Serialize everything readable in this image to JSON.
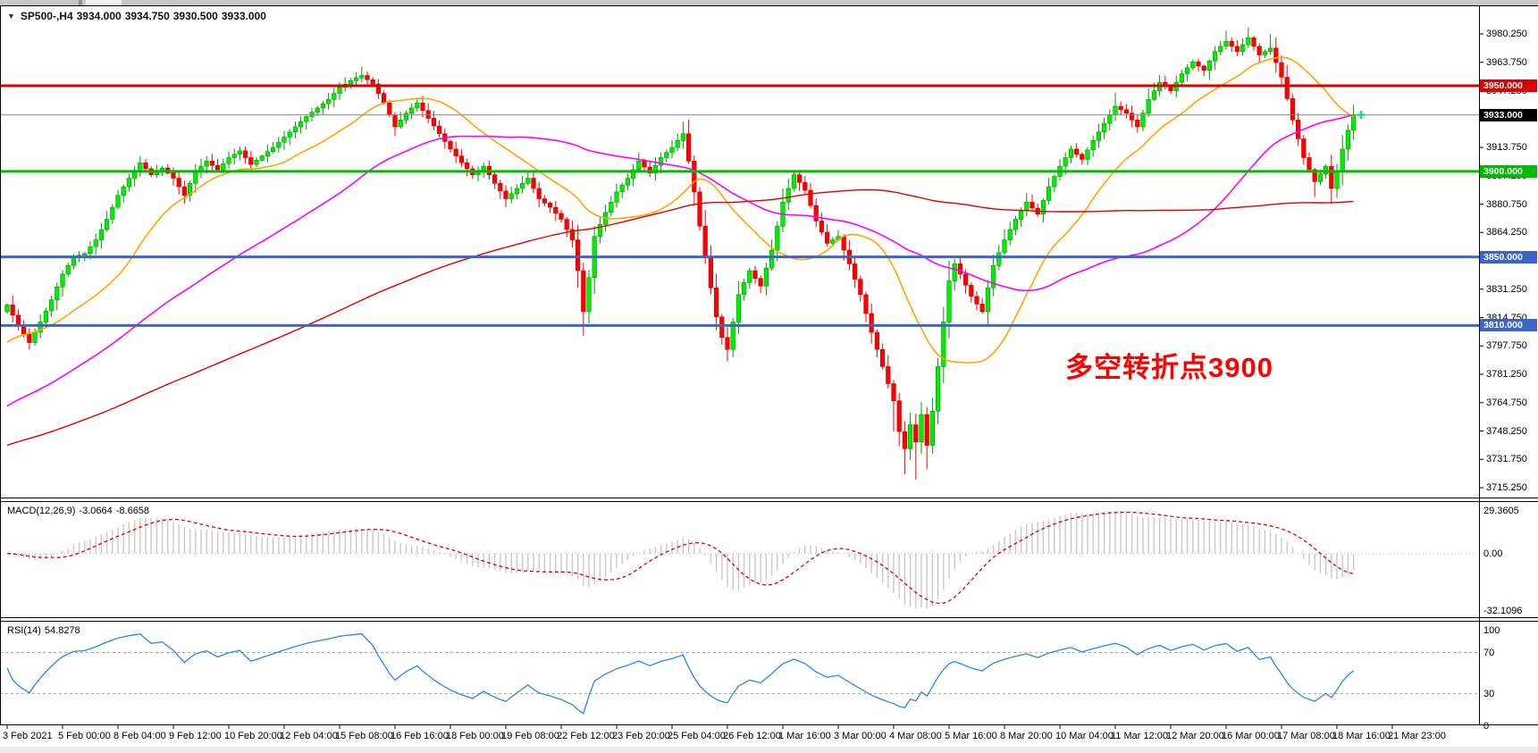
{
  "title": {
    "symbol": "SP500-,H4",
    "open": "3934.000",
    "high": "3934.750",
    "low": "3930.500",
    "close": "3933.000"
  },
  "annotation": {
    "text": "多空转折点3900",
    "color": "#FF0000"
  },
  "price_axis": {
    "labels": [
      "3980.250",
      "3963.750",
      "3947.250",
      "3930.250",
      "3913.750",
      "3897.250",
      "3880.750",
      "3864.250",
      "3847.750",
      "3831.250",
      "3814.750",
      "3797.750",
      "3781.250",
      "3764.750",
      "3748.250",
      "3731.750",
      "3715.250"
    ]
  },
  "time_axis": {
    "labels": [
      "3 Feb 2021",
      "5 Feb 00:00",
      "8 Feb 04:00",
      "9 Feb 12:00",
      "10 Feb 20:00",
      "12 Feb 04:00",
      "15 Feb 08:00",
      "16 Feb 16:00",
      "18 Feb 00:00",
      "19 Feb 08:00",
      "22 Feb 12:00",
      "23 Feb 20:00",
      "25 Feb 04:00",
      "26 Feb 12:00",
      "1 Mar 16:00",
      "3 Mar 00:00",
      "4 Mar 08:00",
      "5 Mar 16:00",
      "8 Mar 20:00",
      "10 Mar 04:00",
      "11 Mar 12:00",
      "12 Mar 20:00",
      "16 Mar 00:00",
      "17 Mar 08:00",
      "18 Mar 16:00",
      "21 Mar 23:00"
    ]
  },
  "indicators": {
    "macd": {
      "label": "MACD(12,26,9)",
      "value": "-3.0664",
      "signal": "-8.6658",
      "axis_labels": [
        "29.3605",
        "0.00",
        "-32.1096"
      ]
    },
    "rsi": {
      "label": "RSI(14)",
      "value": "54.8278",
      "axis_labels": [
        "100",
        "70",
        "30",
        "0"
      ]
    }
  },
  "chart_data": [
    {
      "type": "candlestick",
      "symbol": "SP500-",
      "timeframe": "H4",
      "last_ohlc": {
        "open": 3934.0,
        "high": 3934.75,
        "low": 3930.5,
        "close": 3933.0
      },
      "y_axis_range": [
        3715.25,
        3980.25
      ],
      "bars": 244,
      "bars_per_time_label": 10,
      "close_waypoints": [
        [
          0,
          3822
        ],
        [
          2,
          3810
        ],
        [
          4,
          3800
        ],
        [
          6,
          3812
        ],
        [
          8,
          3825
        ],
        [
          10,
          3840
        ],
        [
          12,
          3850
        ],
        [
          14,
          3852
        ],
        [
          16,
          3860
        ],
        [
          18,
          3872
        ],
        [
          20,
          3886
        ],
        [
          22,
          3896
        ],
        [
          24,
          3905
        ],
        [
          26,
          3898
        ],
        [
          28,
          3902
        ],
        [
          30,
          3896
        ],
        [
          32,
          3886
        ],
        [
          34,
          3900
        ],
        [
          36,
          3906
        ],
        [
          38,
          3901
        ],
        [
          40,
          3908
        ],
        [
          42,
          3912
        ],
        [
          44,
          3904
        ],
        [
          46,
          3909
        ],
        [
          48,
          3914
        ],
        [
          50,
          3920
        ],
        [
          52,
          3926
        ],
        [
          54,
          3932
        ],
        [
          56,
          3937
        ],
        [
          58,
          3942
        ],
        [
          60,
          3949
        ],
        [
          62,
          3953
        ],
        [
          64,
          3956
        ],
        [
          66,
          3951
        ],
        [
          68,
          3940
        ],
        [
          70,
          3926
        ],
        [
          72,
          3934
        ],
        [
          74,
          3940
        ],
        [
          76,
          3931
        ],
        [
          78,
          3922
        ],
        [
          80,
          3913
        ],
        [
          82,
          3905
        ],
        [
          84,
          3898
        ],
        [
          86,
          3903
        ],
        [
          88,
          3893
        ],
        [
          90,
          3884
        ],
        [
          92,
          3890
        ],
        [
          94,
          3896
        ],
        [
          96,
          3884
        ],
        [
          98,
          3879
        ],
        [
          100,
          3872
        ],
        [
          102,
          3860
        ],
        [
          103,
          3842
        ],
        [
          104,
          3818
        ],
        [
          105,
          3838
        ],
        [
          106,
          3862
        ],
        [
          108,
          3876
        ],
        [
          110,
          3888
        ],
        [
          112,
          3896
        ],
        [
          114,
          3906
        ],
        [
          116,
          3899
        ],
        [
          118,
          3908
        ],
        [
          120,
          3914
        ],
        [
          122,
          3922
        ],
        [
          123,
          3906
        ],
        [
          124,
          3888
        ],
        [
          125,
          3868
        ],
        [
          126,
          3850
        ],
        [
          127,
          3832
        ],
        [
          128,
          3815
        ],
        [
          129,
          3803
        ],
        [
          130,
          3796
        ],
        [
          131,
          3812
        ],
        [
          132,
          3828
        ],
        [
          134,
          3842
        ],
        [
          136,
          3833
        ],
        [
          138,
          3854
        ],
        [
          140,
          3882
        ],
        [
          142,
          3898
        ],
        [
          144,
          3889
        ],
        [
          146,
          3871
        ],
        [
          148,
          3858
        ],
        [
          150,
          3862
        ],
        [
          152,
          3846
        ],
        [
          154,
          3828
        ],
        [
          156,
          3806
        ],
        [
          158,
          3786
        ],
        [
          160,
          3766
        ],
        [
          161,
          3748
        ],
        [
          162,
          3738
        ],
        [
          163,
          3752
        ],
        [
          164,
          3742
        ],
        [
          165,
          3758
        ],
        [
          166,
          3740
        ],
        [
          167,
          3760
        ],
        [
          168,
          3786
        ],
        [
          169,
          3812
        ],
        [
          170,
          3836
        ],
        [
          171,
          3846
        ],
        [
          172,
          3840
        ],
        [
          174,
          3827
        ],
        [
          176,
          3818
        ],
        [
          177,
          3832
        ],
        [
          178,
          3845
        ],
        [
          180,
          3860
        ],
        [
          182,
          3872
        ],
        [
          184,
          3882
        ],
        [
          186,
          3875
        ],
        [
          188,
          3891
        ],
        [
          190,
          3903
        ],
        [
          192,
          3913
        ],
        [
          194,
          3907
        ],
        [
          196,
          3918
        ],
        [
          198,
          3928
        ],
        [
          200,
          3938
        ],
        [
          202,
          3934
        ],
        [
          204,
          3926
        ],
        [
          206,
          3942
        ],
        [
          208,
          3952
        ],
        [
          210,
          3947
        ],
        [
          212,
          3957
        ],
        [
          214,
          3964
        ],
        [
          216,
          3959
        ],
        [
          218,
          3970
        ],
        [
          220,
          3976
        ],
        [
          222,
          3970
        ],
        [
          224,
          3978
        ],
        [
          226,
          3968
        ],
        [
          228,
          3972
        ],
        [
          230,
          3955
        ],
        [
          232,
          3930
        ],
        [
          234,
          3908
        ],
        [
          236,
          3894
        ],
        [
          238,
          3903
        ],
        [
          239,
          3890
        ],
        [
          240,
          3900
        ],
        [
          241,
          3913
        ],
        [
          242,
          3924
        ],
        [
          243,
          3933
        ]
      ],
      "extremes": [
        [
          64,
          "h",
          3961
        ],
        [
          104,
          "l",
          3804
        ],
        [
          122,
          "h",
          3929
        ],
        [
          130,
          "l",
          3789
        ],
        [
          160,
          "l",
          3748
        ],
        [
          162,
          "l",
          3723
        ],
        [
          164,
          "l",
          3720
        ],
        [
          166,
          "l",
          3726
        ],
        [
          170,
          "h",
          3848
        ],
        [
          200,
          "h",
          3946
        ],
        [
          220,
          "h",
          3982
        ],
        [
          224,
          "h",
          3984
        ],
        [
          228,
          "h",
          3980
        ],
        [
          236,
          "l",
          3885
        ],
        [
          239,
          "l",
          3881
        ],
        [
          243,
          "h",
          3936
        ]
      ],
      "wick_seed": 7,
      "colors": {
        "up_fill": "#00EE00",
        "up_stroke": "#009900",
        "down_fill": "#FF0000",
        "down_stroke": "#CC0000"
      },
      "moving_averages": [
        {
          "name": "ma-fast",
          "color": "#FFA500",
          "period": 20,
          "backfill_slope": 2.3,
          "width": 1.6
        },
        {
          "name": "ma-mid",
          "color": "#FF00FF",
          "period": 60,
          "backfill_slope": 2.0,
          "width": 1.6
        },
        {
          "name": "ma-slow",
          "color": "#E00000",
          "period": 150,
          "backfill_slope": 1.1,
          "width": 1.4
        }
      ],
      "hlines": [
        {
          "price": 3950,
          "label": "3950.000",
          "color": "#DD0000",
          "thickness": 3
        },
        {
          "price": 3900,
          "label": "3900.000",
          "color": "#00BB00",
          "thickness": 3
        },
        {
          "price": 3850,
          "label": "3850.000",
          "color": "#3A66CC",
          "thickness": 3
        },
        {
          "price": 3810,
          "label": "3810.000",
          "color": "#3A66CC",
          "thickness": 3
        }
      ],
      "current_price": {
        "price": 3933.0,
        "label": "3933.000",
        "line_color": "#888888",
        "tag_bg": "#000000",
        "marker_color": "#00E676"
      }
    },
    {
      "type": "macd",
      "fast": 12,
      "slow": 26,
      "signal_period": 9,
      "last_value": -3.0664,
      "last_signal": -8.6658,
      "y_range": [
        -32.1096,
        29.3605
      ],
      "colors": {
        "histogram": "#C8C8C8",
        "signal": "#DD0000",
        "zero_line": "#BBBBBB"
      }
    },
    {
      "type": "rsi",
      "period": 14,
      "last_value": 54.8278,
      "y_range": [
        0,
        100
      ],
      "levels": [
        70,
        30
      ],
      "colors": {
        "line": "#2E86E0",
        "level": "#AAAAAA"
      }
    }
  ]
}
